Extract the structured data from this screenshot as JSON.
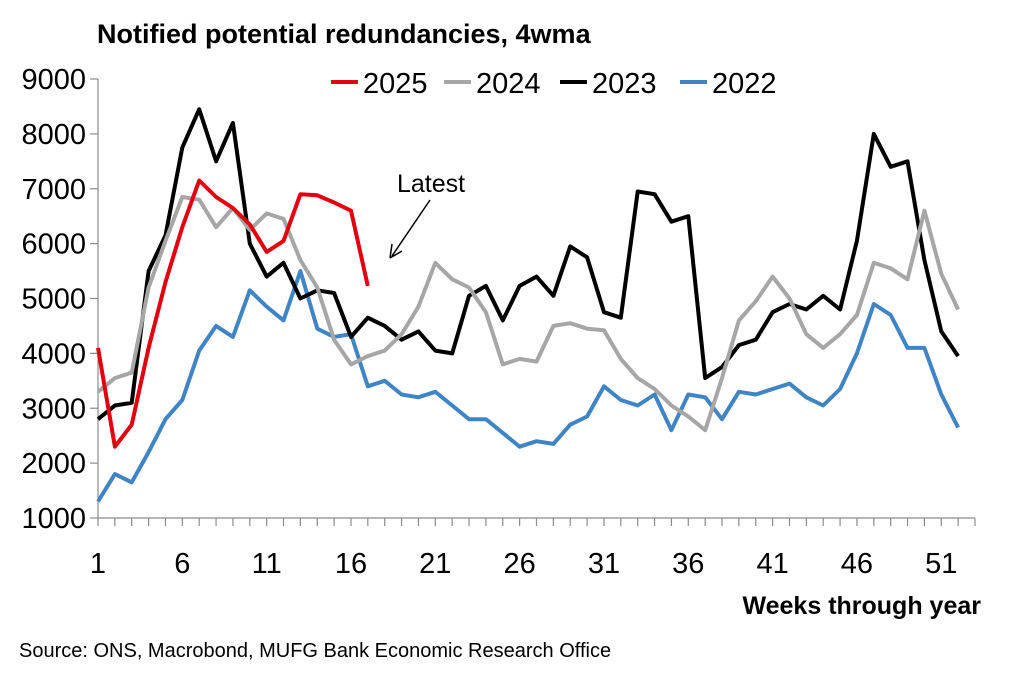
{
  "chart_data": {
    "type": "line",
    "title": "Notified potential redundancies, 4wma",
    "xlabel": "Weeks through year",
    "ylabel": "",
    "xlim": [
      1,
      53
    ],
    "ylim": [
      1000,
      9000
    ],
    "x_ticks": [
      1,
      6,
      11,
      16,
      21,
      26,
      31,
      36,
      41,
      46,
      51
    ],
    "y_ticks": [
      1000,
      2000,
      3000,
      4000,
      5000,
      6000,
      7000,
      8000,
      9000
    ],
    "legend_position": "top",
    "grid": false,
    "annotation": {
      "text": "Latest",
      "points_to_week": 18
    },
    "source": "Source: ONS, Macrobond, MUFG Bank Economic Research Office",
    "series": [
      {
        "name": "2025",
        "color": "#e3000f",
        "values": [
          4100,
          2300,
          2700,
          4100,
          5300,
          6300,
          7150,
          6850,
          6650,
          6350,
          5850,
          6050,
          6900,
          6880,
          6750,
          6600,
          5230
        ]
      },
      {
        "name": "2024",
        "color": "#a6a6a6",
        "values": [
          3300,
          3550,
          3650,
          5200,
          6050,
          6850,
          6800,
          6300,
          6650,
          6250,
          6550,
          6450,
          5700,
          5200,
          4250,
          3800,
          3950,
          4050,
          4350,
          4850,
          5650,
          5350,
          5200,
          4750,
          3800,
          3900,
          3850,
          4500,
          4550,
          4450,
          4420,
          3900,
          3550,
          3350,
          3050,
          2850,
          2600,
          3550,
          4600,
          4950,
          5400,
          5000,
          4350,
          4100,
          4350,
          4700,
          5650,
          5550,
          5350,
          6600,
          5450,
          4800
        ]
      },
      {
        "name": "2023",
        "color": "#000000",
        "values": [
          2800,
          3050,
          3100,
          5500,
          6150,
          7750,
          8450,
          7500,
          8200,
          6000,
          5400,
          5650,
          5000,
          5150,
          5100,
          4300,
          4650,
          4500,
          4250,
          4400,
          4050,
          4000,
          5050,
          5230,
          4600,
          5230,
          5400,
          5050,
          5950,
          5750,
          4750,
          4650,
          6950,
          6900,
          6400,
          6500,
          3550,
          3750,
          4150,
          4250,
          4750,
          4900,
          4800,
          5050,
          4800,
          6050,
          8000,
          7400,
          7500,
          5700,
          4400,
          3950
        ]
      },
      {
        "name": "2022",
        "color": "#3f85c6",
        "values": [
          1300,
          1800,
          1650,
          2200,
          2800,
          3150,
          4050,
          4500,
          4300,
          5150,
          4850,
          4600,
          5500,
          4450,
          4300,
          4350,
          3400,
          3500,
          3250,
          3200,
          3300,
          3050,
          2800,
          2800,
          2550,
          2300,
          2400,
          2350,
          2700,
          2850,
          3400,
          3150,
          3050,
          3250,
          2600,
          3250,
          3200,
          2800,
          3300,
          3250,
          3350,
          3450,
          3200,
          3050,
          3350,
          4000,
          4900,
          4700,
          4100,
          4100,
          3250,
          2650
        ]
      }
    ]
  }
}
